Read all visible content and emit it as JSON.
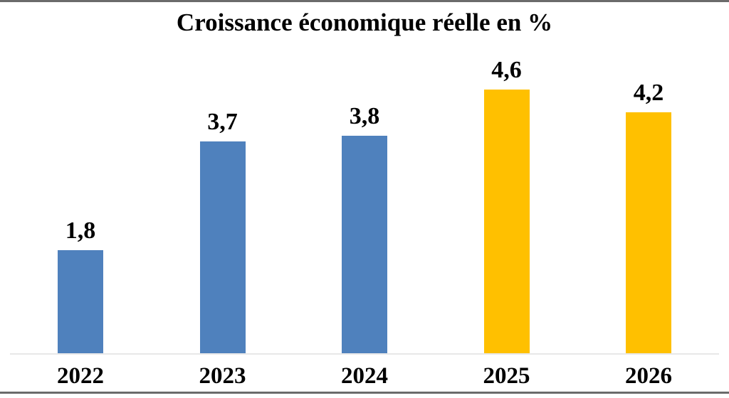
{
  "chart_data": {
    "type": "bar",
    "title": "Croissance économique réelle en %",
    "categories": [
      "2022",
      "2023",
      "2024",
      "2025",
      "2026"
    ],
    "values": [
      1.8,
      3.7,
      3.8,
      4.6,
      4.2
    ],
    "value_labels": [
      "1,8",
      "3,7",
      "3,8",
      "4,6",
      "4,2"
    ],
    "bar_colors": [
      "blue",
      "blue",
      "blue",
      "gold",
      "gold"
    ],
    "xlabel": "",
    "ylabel": "",
    "ylim": [
      0,
      5
    ],
    "grid": false,
    "legend": false,
    "decimal_separator": ","
  },
  "colors": {
    "blue": "#4F81BD",
    "gold": "#FFC000",
    "axis_line": "#E8E8E8",
    "frame_border": "#6B6B6B",
    "text": "#000000",
    "background": "#FFFFFF"
  }
}
